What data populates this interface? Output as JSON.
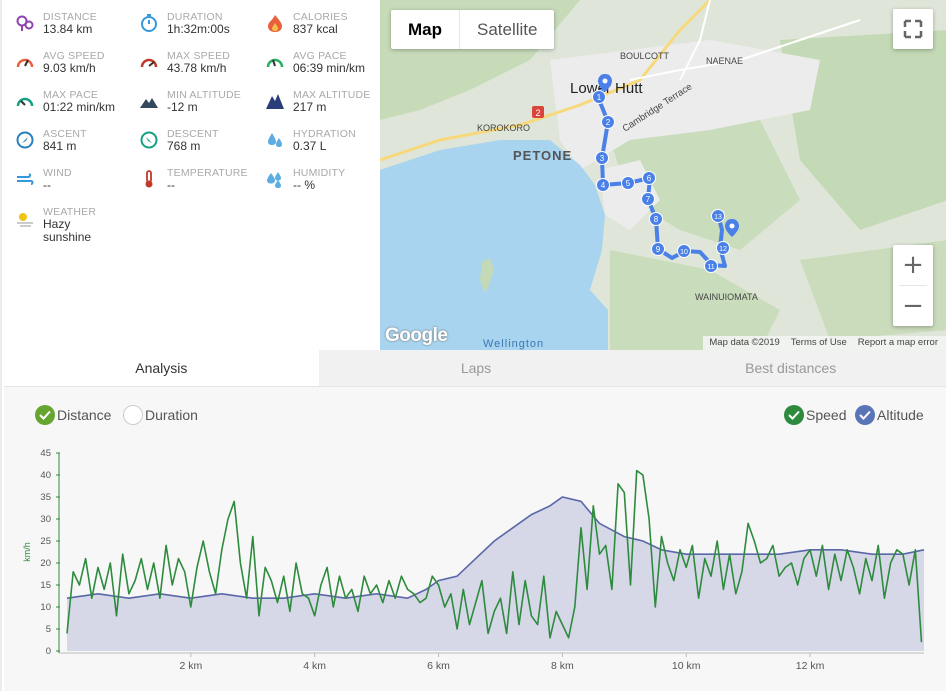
{
  "stats": [
    {
      "label": "DISTANCE",
      "value": "13.84 km",
      "icon": "distance-pin-icon",
      "color": "#8e44ad"
    },
    {
      "label": "DURATION",
      "value": "1h:32m:00s",
      "icon": "stopwatch-icon",
      "color": "#3498db"
    },
    {
      "label": "CALORIES",
      "value": "837 kcal",
      "icon": "flame-icon",
      "color": "#e8603c"
    },
    {
      "label": "AVG SPEED",
      "value": "9.03 km/h",
      "icon": "speedometer-icon",
      "color": "#e8603c"
    },
    {
      "label": "MAX SPEED",
      "value": "43.78 km/h",
      "icon": "speedometer-max-icon",
      "color": "#c0392b"
    },
    {
      "label": "AVG PACE",
      "value": "06:39 min/km",
      "icon": "pace-gauge-icon",
      "color": "#27ae60"
    },
    {
      "label": "MAX PACE",
      "value": "01:22 min/km",
      "icon": "pace-gauge-max-icon",
      "color": "#16a085"
    },
    {
      "label": "MIN ALTITUDE",
      "value": "-12 m",
      "icon": "mountain-low-icon",
      "color": "#34495e"
    },
    {
      "label": "MAX ALTITUDE",
      "value": "217 m",
      "icon": "mountain-high-icon",
      "color": "#2c3e7a"
    },
    {
      "label": "ASCENT",
      "value": "841 m",
      "icon": "compass-ascent-icon",
      "color": "#2980b9"
    },
    {
      "label": "DESCENT",
      "value": "768 m",
      "icon": "compass-descent-icon",
      "color": "#16a085"
    },
    {
      "label": "HYDRATION",
      "value": "0.37 L",
      "icon": "water-drops-icon",
      "color": "#5dade2"
    },
    {
      "label": "WIND",
      "value": "--",
      "icon": "wind-icon",
      "color": "#3498db"
    },
    {
      "label": "TEMPERATURE",
      "value": "--",
      "icon": "thermometer-icon",
      "color": "#c0392b"
    },
    {
      "label": "HUMIDITY",
      "value": "-- %",
      "icon": "humidity-drops-icon",
      "color": "#5dade2"
    },
    {
      "label": "WEATHER",
      "value": "Hazy sunshine",
      "icon": "sun-haze-icon",
      "color": "#f1c40f"
    }
  ],
  "map": {
    "toggle": {
      "map": "Map",
      "satellite": "Satellite"
    },
    "labels": {
      "lower_hutt": "Lower Hutt",
      "boulcott": "BOULCOTT",
      "naenae": "NAENAE",
      "cambridge": "Cambridge Terrace",
      "korokoro": "KOROKORO",
      "petone": "PETONE",
      "wainuiomata": "WAINUIOMATA",
      "wellington": "Wellington",
      "route2": "2"
    },
    "markers": [
      "1",
      "2",
      "3",
      "4",
      "5",
      "6",
      "7",
      "8",
      "9",
      "10",
      "11",
      "12",
      "13"
    ],
    "google": "Google",
    "footer": {
      "data": "Map data ©2019",
      "terms": "Terms of Use",
      "report": "Report a map error"
    },
    "zoom_in": "+",
    "zoom_out": "−"
  },
  "tabs": {
    "analysis": "Analysis",
    "laps": "Laps",
    "best": "Best distances"
  },
  "chart_controls": {
    "distance": "Distance",
    "duration": "Duration",
    "speed": "Speed",
    "altitude": "Altitude"
  },
  "chart_data": {
    "type": "line",
    "ylabel": "km/h",
    "xlabel": "",
    "ylim": [
      0,
      45
    ],
    "xlim": [
      0,
      13.84
    ],
    "y_ticks": [
      "0",
      "5",
      "10",
      "15",
      "20",
      "25",
      "30",
      "35",
      "40",
      "45"
    ],
    "x_ticks": [
      {
        "v": 2,
        "label": "2 km"
      },
      {
        "v": 4,
        "label": "4 km"
      },
      {
        "v": 6,
        "label": "6 km"
      },
      {
        "v": 8,
        "label": "8 km"
      },
      {
        "v": 10,
        "label": "10 km"
      },
      {
        "v": 12,
        "label": "12 km"
      }
    ],
    "colors": {
      "speed": "#2e8b3e",
      "altitude_line": "#5a67a8",
      "altitude_fill": "#d6d8e8"
    },
    "series": [
      {
        "name": "Speed",
        "x": [
          0.0,
          0.1,
          0.2,
          0.3,
          0.4,
          0.5,
          0.6,
          0.7,
          0.8,
          0.9,
          1.0,
          1.1,
          1.2,
          1.3,
          1.4,
          1.5,
          1.6,
          1.7,
          1.8,
          1.9,
          2.0,
          2.1,
          2.2,
          2.3,
          2.4,
          2.5,
          2.6,
          2.7,
          2.8,
          2.9,
          3.0,
          3.1,
          3.2,
          3.3,
          3.4,
          3.5,
          3.6,
          3.7,
          3.8,
          3.9,
          4.0,
          4.1,
          4.2,
          4.3,
          4.4,
          4.5,
          4.6,
          4.7,
          4.8,
          4.9,
          5.0,
          5.1,
          5.2,
          5.3,
          5.4,
          5.5,
          5.6,
          5.7,
          5.8,
          5.9,
          6.0,
          6.1,
          6.2,
          6.3,
          6.4,
          6.5,
          6.6,
          6.7,
          6.8,
          6.9,
          7.0,
          7.1,
          7.2,
          7.3,
          7.4,
          7.5,
          7.6,
          7.7,
          7.8,
          7.9,
          8.0,
          8.1,
          8.2,
          8.3,
          8.4,
          8.5,
          8.6,
          8.7,
          8.8,
          8.9,
          9.0,
          9.1,
          9.2,
          9.3,
          9.4,
          9.5,
          9.6,
          9.7,
          9.8,
          9.9,
          10.0,
          10.1,
          10.2,
          10.3,
          10.4,
          10.5,
          10.6,
          10.7,
          10.8,
          10.9,
          11.0,
          11.1,
          11.2,
          11.3,
          11.4,
          11.5,
          11.6,
          11.7,
          11.8,
          11.9,
          12.0,
          12.1,
          12.2,
          12.3,
          12.4,
          12.5,
          12.6,
          12.7,
          12.8,
          12.9,
          13.0,
          13.1,
          13.2,
          13.3,
          13.4,
          13.5,
          13.6,
          13.7,
          13.8
        ],
        "values": [
          4,
          18,
          15,
          21,
          12,
          19,
          14,
          20,
          8,
          22,
          13,
          16,
          21,
          14,
          20,
          12,
          24,
          15,
          21,
          18,
          10,
          19,
          25,
          18,
          13,
          23,
          30,
          34,
          20,
          12,
          26,
          8,
          19,
          16,
          11,
          17,
          9,
          20,
          13,
          12,
          8,
          15,
          19,
          10,
          17,
          12,
          14,
          9,
          17,
          13,
          15,
          11,
          16,
          12,
          17,
          14,
          13,
          11,
          12,
          17,
          15,
          10,
          13,
          5,
          14,
          6,
          11,
          16,
          4,
          9,
          12,
          4,
          18,
          6,
          16,
          8,
          6,
          17,
          3,
          9,
          6,
          3,
          10,
          28,
          14,
          33,
          22,
          24,
          14,
          38,
          36,
          15,
          41,
          40,
          30,
          10,
          26,
          20,
          16,
          23,
          19,
          24,
          12,
          21,
          17,
          25,
          14,
          22,
          13,
          18,
          29,
          25,
          20,
          21,
          24,
          17,
          19,
          20,
          15,
          21,
          23,
          17,
          24,
          14,
          22,
          16,
          23,
          19,
          13,
          21,
          16,
          24,
          12,
          20,
          23,
          22,
          15,
          23,
          2
        ],
        "color": "#2e8b3e"
      },
      {
        "name": "Altitude",
        "x": [
          0.0,
          0.5,
          1.0,
          1.5,
          2.0,
          2.5,
          3.0,
          3.5,
          4.0,
          4.5,
          5.0,
          5.5,
          5.8,
          6.0,
          6.3,
          6.6,
          6.9,
          7.2,
          7.5,
          7.8,
          8.0,
          8.3,
          8.6,
          9.0,
          9.3,
          9.6,
          10.0,
          10.5,
          11.0,
          11.5,
          12.0,
          12.5,
          13.0,
          13.5,
          13.84
        ],
        "values": [
          12,
          13,
          12,
          13,
          12,
          13,
          12,
          12,
          13,
          12,
          13,
          12,
          14,
          16,
          17,
          21,
          25,
          28,
          31,
          33,
          35,
          34,
          29,
          26,
          25,
          23,
          22,
          22,
          22,
          22,
          23,
          23,
          22,
          22,
          23
        ],
        "color": "#5a67a8"
      }
    ]
  }
}
